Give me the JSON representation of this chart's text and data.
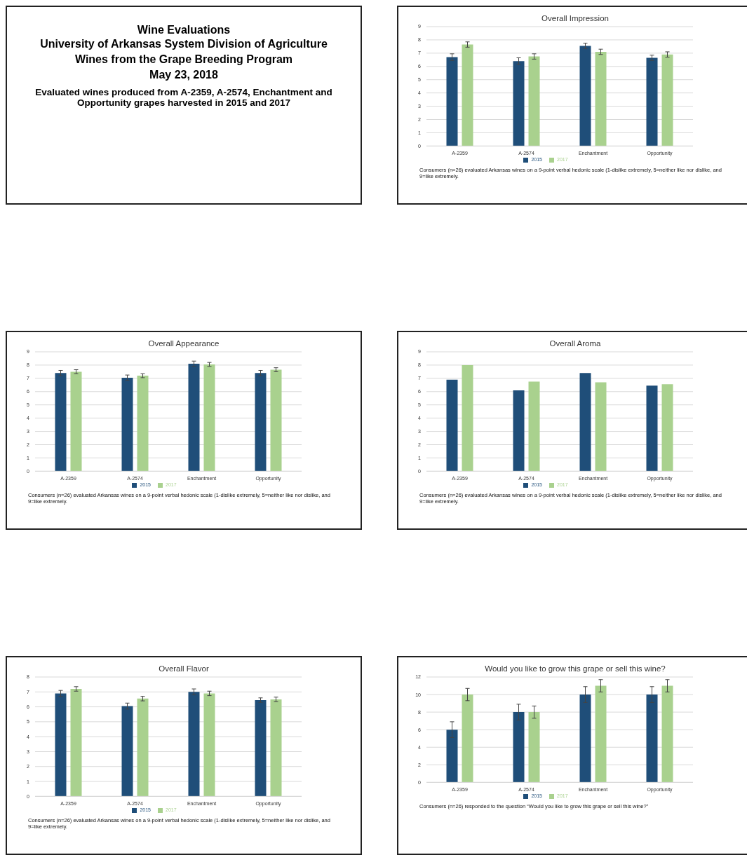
{
  "chart_data": [
    {
      "type": "other",
      "title": "Wine Evaluations",
      "annotations": [
        "University of Arkansas System Division of Agriculture",
        "Wines from the Grape Breeding Program",
        "May 23, 2018",
        "Evaluated wines produced from A-2359, A-2574, Enchantment and Opportunity grapes harvested in 2015 and 2017"
      ]
    },
    {
      "type": "bar",
      "title": "Overall Impression",
      "categories": [
        "A-2359",
        "A-2574",
        "Enchantment",
        "Opportunity"
      ],
      "ylim": [
        0,
        9
      ],
      "yticks": [
        0,
        1,
        2,
        3,
        4,
        5,
        6,
        7,
        8,
        9
      ],
      "grid": "y",
      "legend": "bottom",
      "series": [
        {
          "name": "2015",
          "color": "#1f4e79",
          "values": [
            6.7,
            6.4,
            7.55,
            6.65
          ],
          "errors": [
            0.25,
            0.25,
            0.2,
            0.2
          ]
        },
        {
          "name": "2017",
          "color": "#a9d18e",
          "values": [
            7.65,
            6.75,
            7.1,
            6.9
          ],
          "errors": [
            0.2,
            0.2,
            0.2,
            0.2
          ]
        }
      ],
      "annotations": [
        "Consumers (n=26) evaluated Arkansas wines on a 9-point verbal hedonic scale (1-dislike extremely, 5=neither like nor dislike, and 9=like extremely."
      ]
    },
    {
      "type": "bar",
      "title": "Overall Appearance",
      "categories": [
        "A-2359",
        "A-2574",
        "Enchantment",
        "Opportunity"
      ],
      "ylim": [
        0,
        9
      ],
      "yticks": [
        0,
        1,
        2,
        3,
        4,
        5,
        6,
        7,
        8,
        9
      ],
      "grid": "y",
      "legend": "bottom",
      "series": [
        {
          "name": "2015",
          "color": "#1f4e79",
          "values": [
            7.4,
            7.05,
            8.1,
            7.4
          ],
          "errors": [
            0.2,
            0.2,
            0.2,
            0.2
          ]
        },
        {
          "name": "2017",
          "color": "#a9d18e",
          "values": [
            7.5,
            7.2,
            8.05,
            7.65
          ],
          "errors": [
            0.15,
            0.15,
            0.15,
            0.15
          ]
        }
      ],
      "annotations": [
        "Consumers (n=26) evaluated Arkansas wines on a 9-point verbal hedonic scale (1-dislike extremely, 5=neither like nor dislike, and 9=like extremely."
      ]
    },
    {
      "type": "bar",
      "title": "Overall Aroma",
      "categories": [
        "A-2359",
        "A-2574",
        "Enchantment",
        "Opportunity"
      ],
      "ylim": [
        0,
        9
      ],
      "yticks": [
        0,
        1,
        2,
        3,
        4,
        5,
        6,
        7,
        8,
        9
      ],
      "grid": "y",
      "legend": "bottom",
      "series": [
        {
          "name": "2015",
          "color": "#1f4e79",
          "values": [
            6.9,
            6.1,
            7.4,
            6.45
          ]
        },
        {
          "name": "2017",
          "color": "#a9d18e",
          "values": [
            8.0,
            6.75,
            6.7,
            6.55
          ]
        }
      ],
      "annotations": [
        "Consumers (n=26) evaluated Arkansas wines on a 9-point verbal hedonic scale (1-dislike extremely, 5=neither like nor dislike, and 9=like extremely."
      ]
    },
    {
      "type": "bar",
      "title": "Overall Flavor",
      "categories": [
        "A-2359",
        "A-2574",
        "Enchantment",
        "Opportunity"
      ],
      "ylim": [
        0,
        8
      ],
      "yticks": [
        0,
        1,
        2,
        3,
        4,
        5,
        6,
        7,
        8
      ],
      "grid": "y",
      "legend": "bottom",
      "series": [
        {
          "name": "2015",
          "color": "#1f4e79",
          "values": [
            6.9,
            6.05,
            7.0,
            6.45
          ],
          "errors": [
            0.2,
            0.2,
            0.2,
            0.15
          ]
        },
        {
          "name": "2017",
          "color": "#a9d18e",
          "values": [
            7.2,
            6.55,
            6.9,
            6.5
          ],
          "errors": [
            0.15,
            0.15,
            0.15,
            0.15
          ]
        }
      ],
      "annotations": [
        "Consumers (n=26) evaluated Arkansas wines on a 9-point verbal hedonic scale (1-dislike extremely, 5=neither like nor dislike, and 9=like extremely."
      ]
    },
    {
      "type": "bar",
      "title": "Would you like to grow this grape or sell this wine?",
      "categories": [
        "A-2359",
        "A-2574",
        "Enchantment",
        "Opportunity"
      ],
      "ylim": [
        0,
        12
      ],
      "yticks": [
        0,
        2,
        4,
        6,
        8,
        10,
        12
      ],
      "grid": "y",
      "legend": "bottom",
      "series": [
        {
          "name": "2015",
          "color": "#1f4e79",
          "values": [
            6,
            8,
            10,
            10
          ],
          "errors": [
            0.9,
            0.9,
            0.9,
            0.9
          ]
        },
        {
          "name": "2017",
          "color": "#a9d18e",
          "values": [
            10,
            8,
            11,
            11
          ],
          "errors": [
            0.7,
            0.7,
            0.7,
            0.7
          ]
        }
      ],
      "annotations": [
        "Consumers (n=26) responded to the question “Would you like to grow this grape or sell this wine?”"
      ]
    }
  ]
}
